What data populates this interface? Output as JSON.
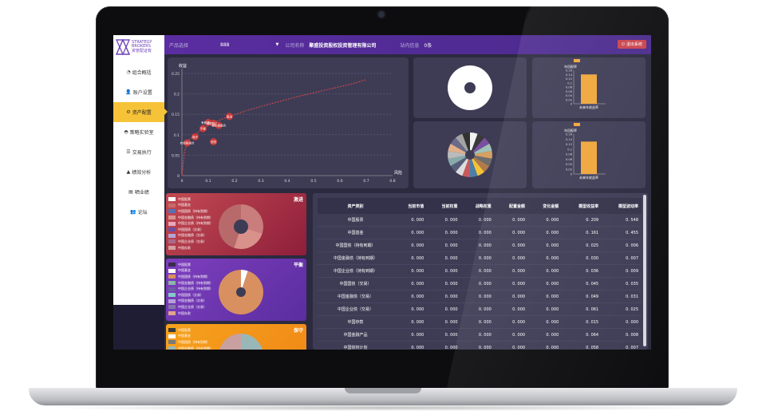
{
  "brand": {
    "name_line1": "STRATEGY",
    "name_line2": "BROKERS",
    "name_cn": "资管配证有"
  },
  "sidebar": {
    "items": [
      {
        "label": "组合概括",
        "icon": "pie-icon"
      },
      {
        "label": "账户设置",
        "icon": "user-icon"
      },
      {
        "label": "资产配置",
        "icon": "gears-icon",
        "active": true
      },
      {
        "label": "策略实验室",
        "icon": "gauge-icon"
      },
      {
        "label": "交易执行",
        "icon": "database-icon"
      },
      {
        "label": "绩效分析",
        "icon": "area-chart-icon"
      },
      {
        "label": "晒业绩",
        "icon": "file-icon"
      },
      {
        "label": "论坛",
        "icon": "users-icon"
      }
    ]
  },
  "topbar": {
    "product_label": "产品选择",
    "product_value": "888",
    "company_label": "公司名称",
    "company_value": "聚盛投资股权投资管理有限公司",
    "message_label": "站内信息",
    "message_value": "0条",
    "logout_label": "退出系统"
  },
  "chart_data": [
    {
      "type": "line",
      "title": "",
      "ylabel": "收益",
      "xlabel": "风险",
      "xlim": [
        0,
        0.8
      ],
      "ylim": [
        0,
        0.25
      ],
      "x_ticks": [
        "0",
        "0.1",
        "0.2",
        "0.3",
        "0.4",
        "0.5",
        "0.6",
        "0.7",
        "0.8"
      ],
      "y_ticks": [
        "0",
        "0.05",
        "0.1",
        "0.15",
        "0.2",
        "0.25"
      ],
      "series": [
        {
          "x": [
            0.0,
            0.005,
            0.01,
            0.02,
            0.03,
            0.05,
            0.08,
            0.12,
            0.18,
            0.25,
            0.35,
            0.45,
            0.55,
            0.65,
            0.7
          ],
          "y": [
            0.0,
            0.03,
            0.06,
            0.08,
            0.09,
            0.1,
            0.115,
            0.13,
            0.145,
            0.16,
            0.178,
            0.195,
            0.21,
            0.225,
            0.235
          ]
        }
      ],
      "points": [
        {
          "x": 0.02,
          "y": 0.08,
          "label": "有积极组合"
        },
        {
          "x": 0.05,
          "y": 0.095,
          "label": "保守"
        },
        {
          "x": 0.08,
          "y": 0.115,
          "label": "平衡"
        },
        {
          "x": 0.1,
          "y": 0.13,
          "label": "有积极组合"
        },
        {
          "x": 0.12,
          "y": 0.128,
          "label": "有积极组合"
        },
        {
          "x": 0.14,
          "y": 0.123,
          "label": "有积极组合"
        },
        {
          "x": 0.12,
          "y": 0.083,
          "label": "冠效"
        },
        {
          "x": 0.18,
          "y": 0.145,
          "label": "激进"
        }
      ]
    },
    {
      "type": "pie",
      "values": [
        100
      ],
      "colors": [
        "#ffffff"
      ]
    },
    {
      "type": "pie",
      "values": [
        1,
        1,
        1,
        1,
        1,
        1,
        1,
        1,
        1,
        1,
        1,
        1,
        1,
        1,
        1,
        1,
        1,
        1
      ],
      "colors": [
        "#f2f2f2",
        "#3a3a3a",
        "#7a4fa0",
        "#9fc2b6",
        "#d7a062",
        "#6d6d6d",
        "#b07a4a",
        "#f6c338",
        "#4d7fa8",
        "#c95a5a",
        "#ddd",
        "#565e7a",
        "#8aa",
        "#bbb",
        "#e0b08a",
        "#6a6a8a",
        "#a4a4a4",
        "#313131"
      ]
    },
    {
      "type": "bar",
      "title": "年回报率",
      "categories": [
        "未来年收益率"
      ],
      "values": [
        0.14
      ],
      "ylim": [
        0,
        0.16
      ],
      "y_ticks": [
        "0",
        "0.02",
        "0.04",
        "0.06",
        "0.08",
        "0.1",
        "0.12",
        "0.14",
        "0.16"
      ]
    },
    {
      "type": "bar",
      "title": "年回报率",
      "categories": [
        "未来年收益率"
      ],
      "values": [
        0.13
      ],
      "ylim": [
        0,
        0.16
      ],
      "y_ticks": [
        "0",
        "0.02",
        "0.04",
        "0.06",
        "0.08",
        "0.1",
        "0.12",
        "0.14",
        "0.16"
      ]
    }
  ],
  "portfolios": [
    {
      "title": "激进",
      "legend": [
        "中国股票",
        "中国基金",
        "中国国债（持有到期）",
        "中国金融债（持有到期）",
        "中国企业债（持有到期）",
        "中国国债（交易）",
        "中国金融债（交易）",
        "中国企业债（交易）",
        "中国存款"
      ],
      "colors": [
        "#ffffff",
        "#c96a6a",
        "#5a6fb3",
        "#d9928b",
        "#e9a7b9",
        "#6e4f9e",
        "#b7a2d4",
        "#ab6a8a",
        "#d4a0a0"
      ]
    },
    {
      "title": "平衡",
      "legend": [
        "中国股票",
        "中国基金",
        "中国国债（持有到期）",
        "中国金融债（持有到期）",
        "中国企业债（持有到期）",
        "中国国债（交易）",
        "中国金融债（交易）",
        "中国企业债（交易）",
        "中国存款"
      ],
      "colors": [
        "#3a2b4a",
        "#ffffff",
        "#d99060",
        "#8bb6a8",
        "#6d5aa6",
        "#86c9c8",
        "#b4a0d8",
        "#8577a9",
        "#e0a48a"
      ]
    },
    {
      "title": "保守",
      "legend": [
        "中国股票",
        "中国基金",
        "中国国债（持有到期）",
        "中国金融债（持有到期）"
      ],
      "colors": [
        "#3a3a3a",
        "#ffffff",
        "#7a7a7a",
        "#9ab7b8"
      ]
    }
  ],
  "table": {
    "headers": [
      "资产类别",
      "当前市值",
      "当前权重",
      "战略权重",
      "配置金额",
      "变化金额",
      "模型收益率",
      "模型波动率"
    ],
    "rows": [
      [
        "中国股票",
        "0. 000",
        "0. 000",
        "0. 000",
        "0. 000",
        "0. 000",
        "0. 209",
        "0. 548"
      ],
      [
        "中国基金",
        "0. 000",
        "0. 000",
        "0. 000",
        "0. 000",
        "0. 000",
        "0. 161",
        "0. 455"
      ],
      [
        "中国国债（持有到期）",
        "0. 000",
        "0. 000",
        "0. 000",
        "0. 000",
        "0. 000",
        "0. 025",
        "0. 006"
      ],
      [
        "中国金融债（持有到期）",
        "0. 000",
        "0. 000",
        "0. 000",
        "0. 000",
        "0. 000",
        "0. 030",
        "0. 007"
      ],
      [
        "中国企业债（持有到期）",
        "0. 000",
        "0. 000",
        "0. 000",
        "0. 000",
        "0. 000",
        "0. 036",
        "0. 009"
      ],
      [
        "中国国债（交易）",
        "0. 000",
        "0. 000",
        "0. 000",
        "0. 000",
        "0. 000",
        "0. 045",
        "0. 035"
      ],
      [
        "中国金融债（交易）",
        "0. 000",
        "0. 000",
        "0. 000",
        "0. 000",
        "0. 000",
        "0. 049",
        "0. 031"
      ],
      [
        "中国企业债（交易）",
        "0. 000",
        "0. 000",
        "0. 000",
        "0. 000",
        "0. 000",
        "0. 061",
        "0. 025"
      ],
      [
        "中国存款",
        "0. 000",
        "0. 000",
        "0. 000",
        "0. 000",
        "0. 000",
        "0. 015",
        "0. 000"
      ],
      [
        "中国金融产品",
        "0. 000",
        "0. 000",
        "0. 000",
        "0. 000",
        "0. 000",
        "0. 064",
        "0. 008"
      ],
      [
        "中国债权计划",
        "0. 000",
        "0. 000",
        "0. 000",
        "0. 000",
        "0. 000",
        "0. 058",
        "0. 007"
      ]
    ]
  }
}
